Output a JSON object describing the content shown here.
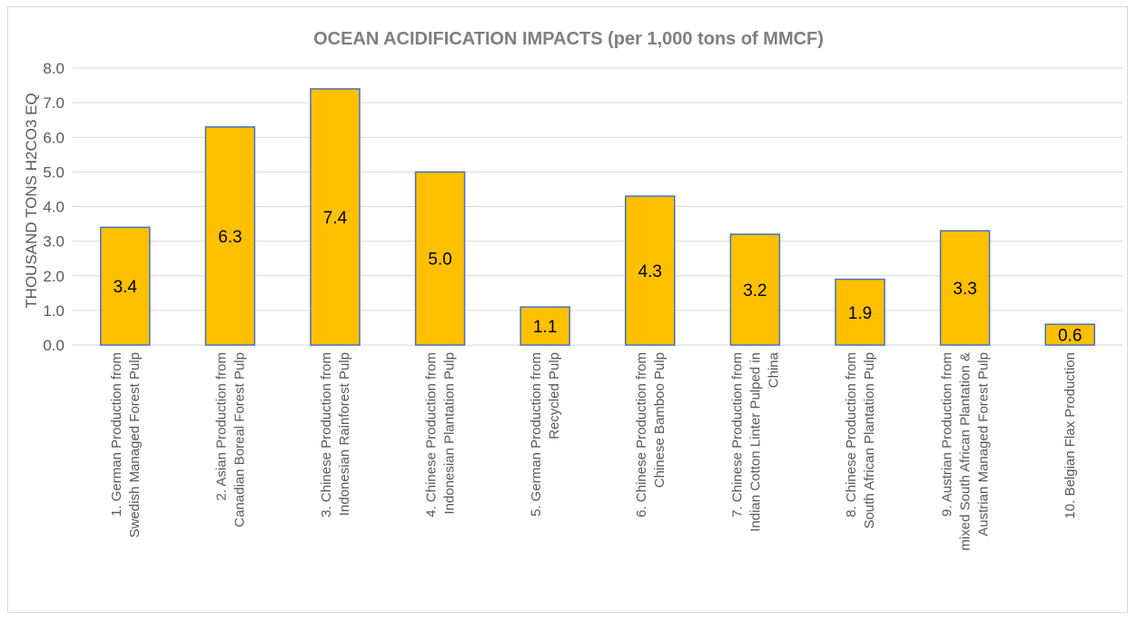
{
  "chart_data": {
    "type": "bar",
    "title": "OCEAN ACIDIFICATION IMPACTS (per 1,000 tons of MMCF)",
    "ylabel": "THOUSAND TONS H2CO3 EQ",
    "xlabel": "",
    "ylim": [
      0,
      8
    ],
    "ytick_step": 1,
    "ytick_labels": [
      "0.0",
      "1.0",
      "2.0",
      "3.0",
      "4.0",
      "5.0",
      "6.0",
      "7.0",
      "8.0"
    ],
    "grid": true,
    "legend": "none",
    "categories": [
      [
        "1. German Production from",
        "Swedish Managed Forest Pulp"
      ],
      [
        "2. Asian Production from",
        "Canadian Boreal Forest Pulp"
      ],
      [
        "3. Chinese Production from",
        "Indonesian Rainforest Pulp"
      ],
      [
        "4. Chinese Production from",
        "Indonesian Plantation Pulp"
      ],
      [
        "5. German Production from",
        "Recycled Pulp"
      ],
      [
        "6. Chinese Production from",
        "Chinese Bamboo Pulp"
      ],
      [
        "7. Chinese Production from",
        "Indian Cotton Linter Pulped in",
        "China"
      ],
      [
        "8. Chinese Production from",
        "South African Plantation Pulp"
      ],
      [
        "9. Austrian Production from",
        "mixed South African Plantation &",
        "Austrian Managed Forest Pulp"
      ],
      [
        "10. Belgian Flax Production"
      ]
    ],
    "values": [
      3.4,
      6.3,
      7.4,
      5.0,
      1.1,
      4.3,
      3.2,
      1.9,
      3.3,
      0.6
    ],
    "data_labels": [
      "3.4",
      "6.3",
      "7.4",
      "5.0",
      "1.1",
      "4.3",
      "3.2",
      "1.9",
      "3.3",
      "0.6"
    ],
    "colors": {
      "bar_fill": "#ffc000",
      "bar_stroke": "#4472c4",
      "grid": "#d9d9d9"
    }
  }
}
